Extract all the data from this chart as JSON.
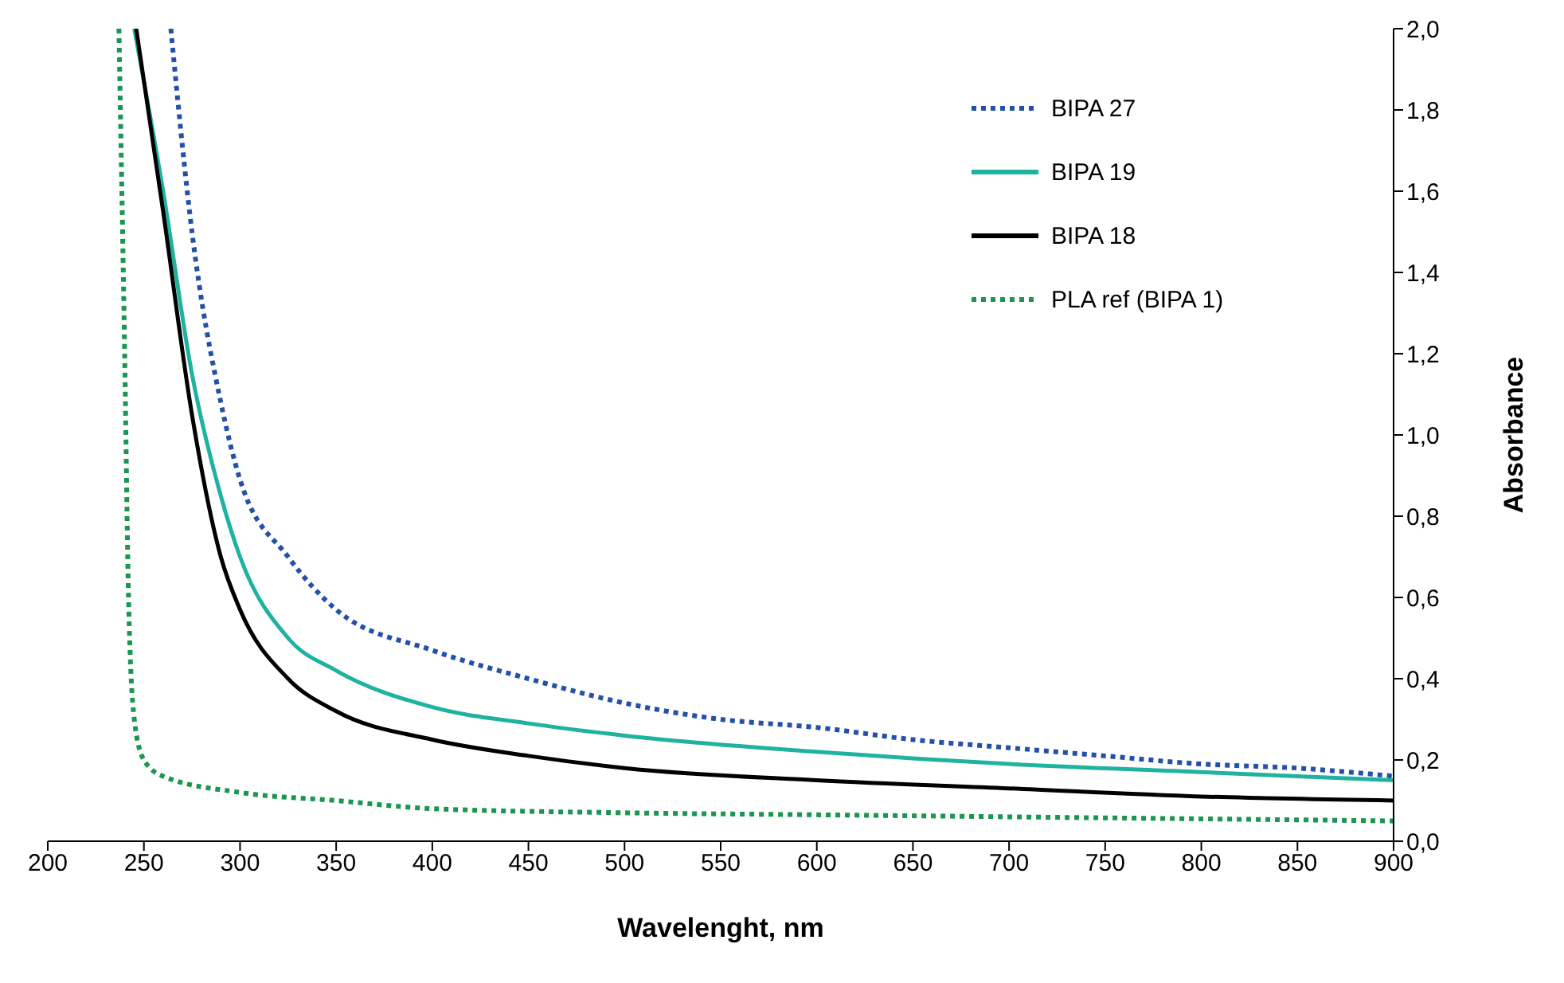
{
  "chart_data": {
    "type": "line",
    "xlabel": "Wavelenght, nm",
    "ylabel": "Absorbance",
    "xlim": [
      200,
      900
    ],
    "xticks": [
      200,
      250,
      300,
      350,
      400,
      450,
      500,
      550,
      600,
      650,
      700,
      750,
      800,
      850,
      900
    ],
    "ylim": [
      0,
      2
    ],
    "yticks": [
      {
        "value": 0,
        "label": "0,0"
      },
      {
        "value": 0.2,
        "label": "0,2"
      },
      {
        "value": 0.4,
        "label": "0,4"
      },
      {
        "value": 0.6,
        "label": "0,6"
      },
      {
        "value": 0.8,
        "label": "0,8"
      },
      {
        "value": 1,
        "label": "1,0"
      },
      {
        "value": 1.2,
        "label": "1,2"
      },
      {
        "value": 1.4,
        "label": "1,4"
      },
      {
        "value": 1.6,
        "label": "1,6"
      },
      {
        "value": 1.8,
        "label": "1,8"
      },
      {
        "value": 2,
        "label": "2,0"
      }
    ],
    "grid": false,
    "legend": "top right",
    "marker": "none",
    "series": [
      {
        "name": "BIPA 27",
        "color": "#2450a8",
        "line_style": "dotted",
        "x": [
          264,
          275,
          290,
          300,
          325,
          350,
          400,
          450,
          500,
          550,
          600,
          650,
          700,
          750,
          800,
          850,
          900
        ],
        "values": [
          2.0,
          1.5,
          1.08,
          0.89,
          0.7,
          0.57,
          0.47,
          0.4,
          0.34,
          0.3,
          0.28,
          0.25,
          0.23,
          0.21,
          0.19,
          0.18,
          0.16
        ]
      },
      {
        "name": "BIPA 19",
        "color": "#20b2a0",
        "line_style": "solid",
        "x": [
          245,
          260,
          275,
          290,
          300,
          325,
          350,
          400,
          450,
          500,
          600,
          700,
          800,
          900
        ],
        "values": [
          2.0,
          1.6,
          1.15,
          0.85,
          0.7,
          0.5,
          0.42,
          0.33,
          0.29,
          0.26,
          0.22,
          0.19,
          0.17,
          0.15
        ]
      },
      {
        "name": "BIPA 18",
        "color": "#000000",
        "line_style": "solid",
        "x": [
          246,
          260,
          275,
          290,
          300,
          325,
          350,
          400,
          450,
          500,
          600,
          700,
          800,
          900
        ],
        "values": [
          2.0,
          1.55,
          1.05,
          0.7,
          0.57,
          0.4,
          0.32,
          0.25,
          0.21,
          0.18,
          0.15,
          0.13,
          0.11,
          0.1
        ]
      },
      {
        "name": "PLA ref (BIPA 1)",
        "color": "#1a9650",
        "line_style": "dotted",
        "x": [
          237,
          240,
          242,
          245,
          250,
          260,
          300,
          350,
          400,
          500,
          600,
          700,
          800,
          900
        ],
        "values": [
          2.0,
          1.2,
          0.6,
          0.3,
          0.2,
          0.16,
          0.12,
          0.1,
          0.08,
          0.07,
          0.065,
          0.06,
          0.055,
          0.05
        ]
      }
    ]
  }
}
